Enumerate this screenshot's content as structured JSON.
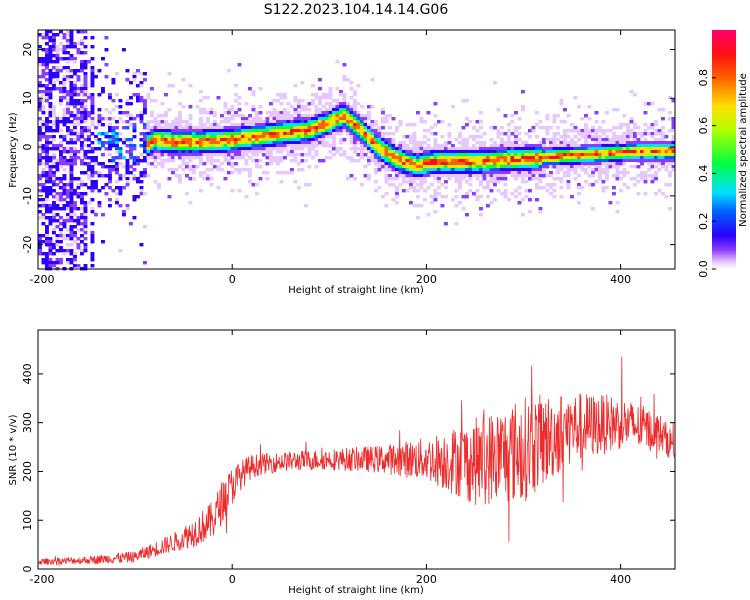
{
  "title": "S122.2023.104.14.14.G06",
  "chart_data": [
    {
      "type": "heatmap",
      "name": "spectrogram",
      "xlabel": "Height of straight line (km)",
      "ylabel": "Frequency (Hz)",
      "xlim": [
        -200,
        456
      ],
      "ylim": [
        -25,
        24
      ],
      "xticks": [
        -200,
        0,
        200,
        400
      ],
      "yticks": [
        -20,
        -10,
        0,
        10,
        20
      ],
      "ridge": {
        "x": [
          -90,
          -80,
          -60,
          -40,
          -20,
          0,
          20,
          40,
          60,
          80,
          100,
          115,
          130,
          150,
          170,
          190,
          210,
          250,
          290,
          330,
          370,
          410,
          456
        ],
        "y": [
          0,
          1.5,
          1,
          1,
          1.2,
          1.5,
          2,
          2.5,
          3,
          3.5,
          5,
          6.5,
          4,
          0,
          -2.5,
          -3.8,
          -3,
          -3,
          -2.6,
          -2,
          -1.5,
          -1,
          -0.8
        ]
      },
      "colorbar": {
        "label": "Normalized spectral amplitude",
        "range": [
          0,
          1
        ],
        "ticks": [
          0.0,
          0.2,
          0.4,
          0.6,
          0.8
        ]
      }
    },
    {
      "type": "line",
      "name": "snr",
      "xlabel": "Height of straight line (km)",
      "ylabel": "SNR (10 * v/v)",
      "xlim": [
        -200,
        456
      ],
      "ylim": [
        0,
        490
      ],
      "xticks": [
        -200,
        0,
        200,
        400
      ],
      "yticks": [
        0,
        100,
        200,
        300,
        400
      ],
      "series_color": "#ee2b2b",
      "envelope": {
        "x": [
          -200,
          -150,
          -100,
          -60,
          -40,
          -20,
          -10,
          0,
          10,
          20,
          30,
          50,
          100,
          150,
          200,
          250,
          300,
          350,
          400,
          440,
          456
        ],
        "mean": [
          15,
          18,
          25,
          55,
          75,
          100,
          140,
          170,
          195,
          210,
          215,
          220,
          225,
          225,
          225,
          220,
          245,
          290,
          300,
          280,
          250
        ],
        "spread": [
          6,
          8,
          12,
          20,
          30,
          40,
          45,
          40,
          30,
          25,
          22,
          20,
          22,
          28,
          45,
          90,
          110,
          75,
          55,
          40,
          30
        ]
      }
    }
  ]
}
